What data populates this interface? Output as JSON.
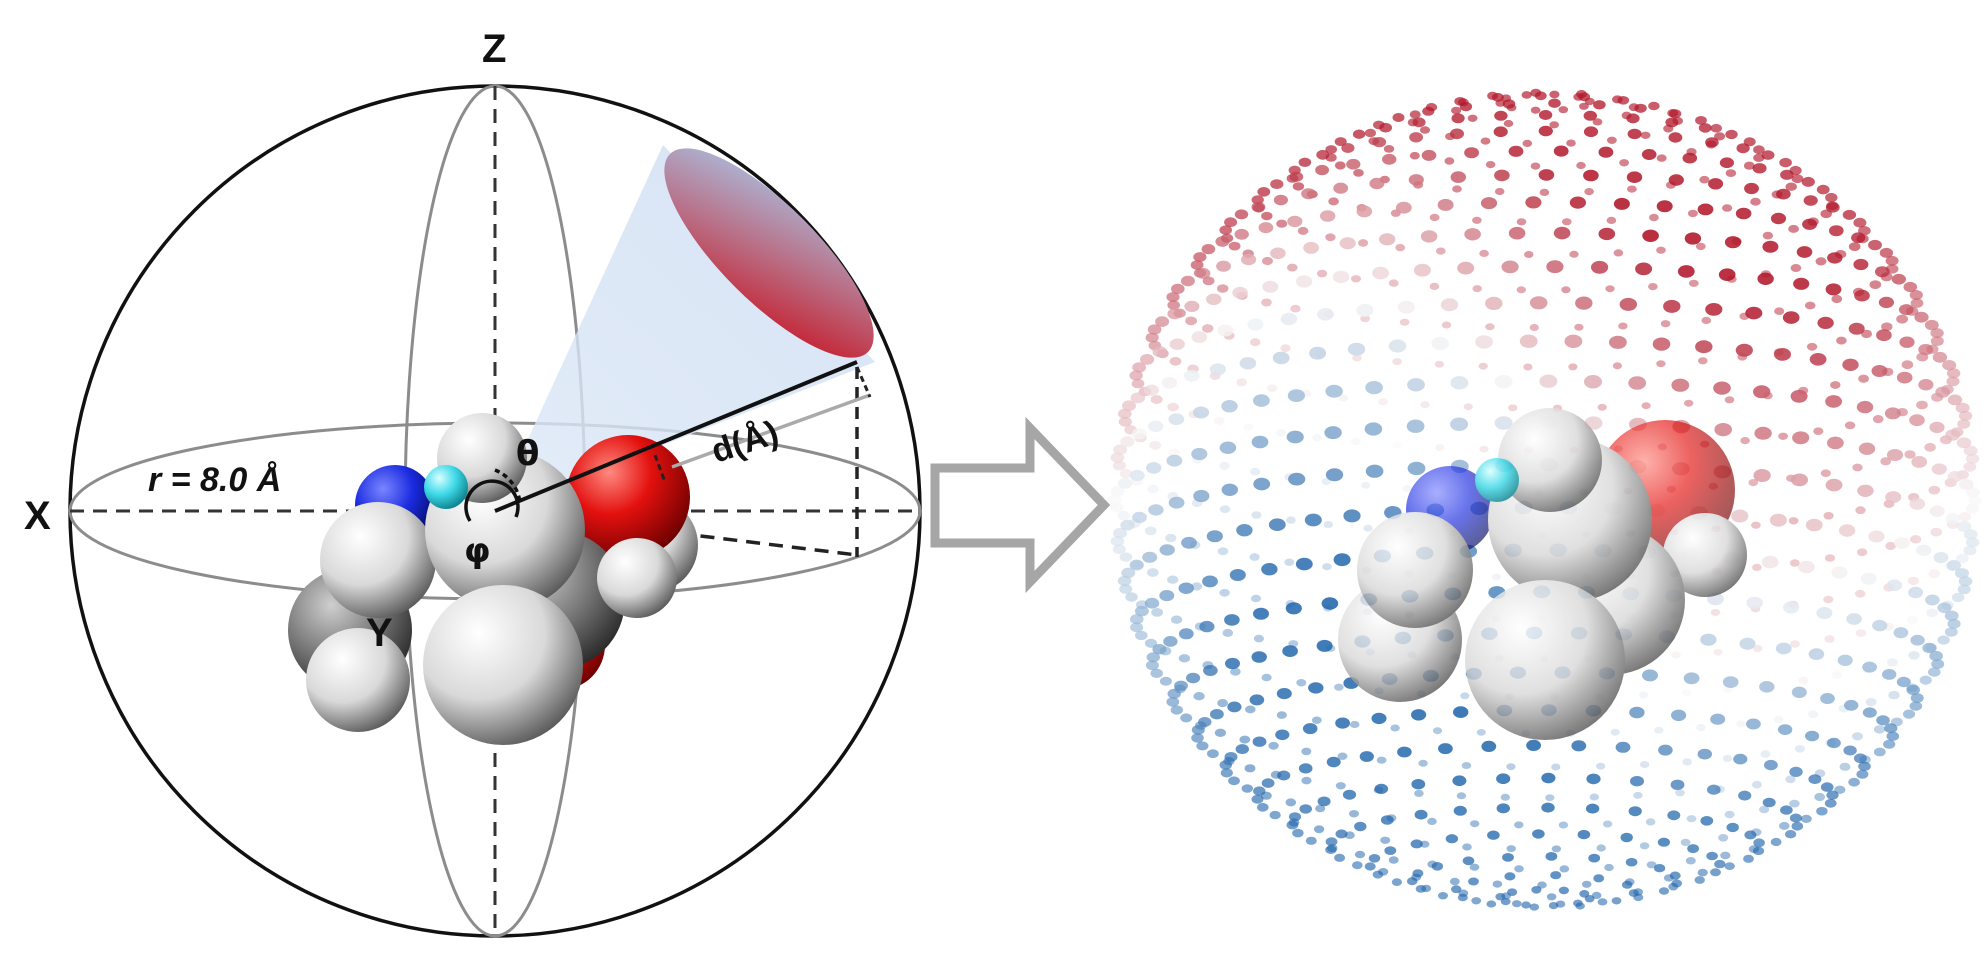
{
  "left_panel": {
    "axis_labels": {
      "x": "X",
      "y": "Y",
      "z": "Z"
    },
    "angle_labels": {
      "theta": "θ",
      "phi": "φ"
    },
    "radius_label": "r = 8.0 Å",
    "distance_label": "d(Å)"
  },
  "right_panel": {
    "description_colors": {
      "high": "#b2182b",
      "mid": "#f7f7f7",
      "low": "#2166ac"
    }
  },
  "colors": {
    "oxygen": "#e3110f",
    "nitrogen": "#1a2be0",
    "carbon": "#5a5a5a",
    "hydrogen": "#e8e8e8",
    "highlight_atom": "#3fd9e8",
    "arrow": "#a6a6a6"
  }
}
